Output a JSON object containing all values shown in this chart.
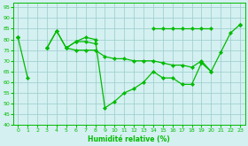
{
  "line1": [
    81,
    62,
    null,
    76,
    84,
    76,
    79,
    81,
    80,
    48,
    51,
    55,
    57,
    60,
    65,
    62,
    62,
    59,
    59,
    69,
    65,
    74,
    83,
    87
  ],
  "line2": [
    81,
    null,
    null,
    76,
    84,
    76,
    79,
    79,
    78,
    null,
    null,
    null,
    null,
    null,
    85,
    85,
    85,
    85,
    85,
    85,
    85,
    null,
    null,
    87
  ],
  "line3": [
    81,
    null,
    null,
    76,
    null,
    76,
    75,
    75,
    75,
    72,
    71,
    71,
    70,
    70,
    70,
    69,
    68,
    68,
    67,
    70,
    65,
    null,
    null,
    87
  ],
  "xlim": [
    -0.5,
    23.5
  ],
  "ylim": [
    40,
    97
  ],
  "yticks": [
    40,
    45,
    50,
    55,
    60,
    65,
    70,
    75,
    80,
    85,
    90,
    95
  ],
  "xticks": [
    0,
    1,
    2,
    3,
    4,
    5,
    6,
    7,
    8,
    9,
    10,
    11,
    12,
    13,
    14,
    15,
    16,
    17,
    18,
    19,
    20,
    21,
    22,
    23
  ],
  "xlabel": "Humidité relative (%)",
  "line_color": "#00bb00",
  "bg_color": "#d4f0f0",
  "grid_color": "#99cccc",
  "marker": "D",
  "markersize": 2.2,
  "linewidth": 0.9
}
